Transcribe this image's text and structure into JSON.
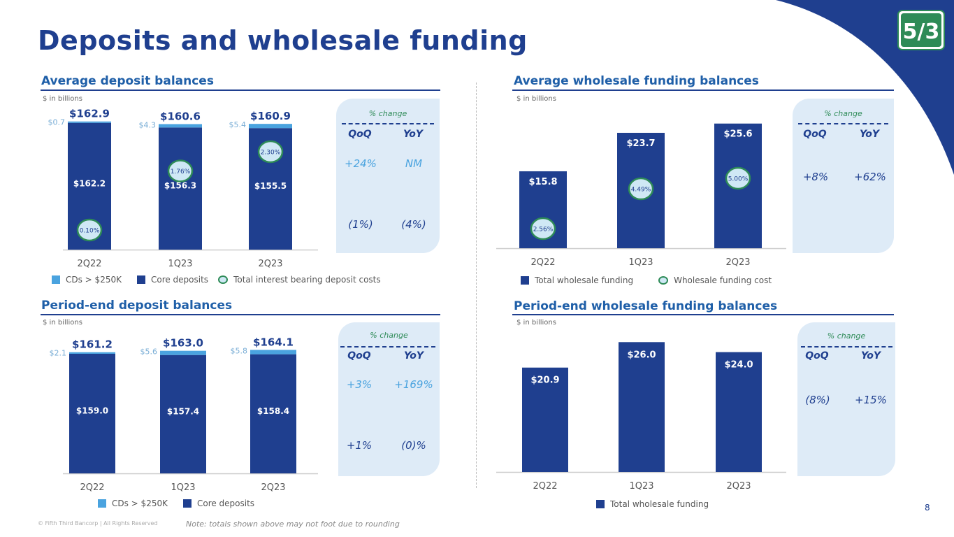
{
  "title": "Deposits and wholesale funding",
  "footer": {
    "copyright": "© Fifth Third Bancorp | All Rights Reserved",
    "note": "Note: totals shown above may not foot due to rounding",
    "page": "8"
  },
  "colors": {
    "core": "#1f3f8f",
    "cds": "#4aa3df",
    "oval_border": "#2e8b57",
    "oval_fill": "#cfe8f5",
    "panel": "#deebf7"
  },
  "chart_data": [
    {
      "id": "avg-deposits",
      "type": "bar",
      "title": "Average deposit balances",
      "unit": "$ in billions",
      "categories": [
        "2Q22",
        "1Q23",
        "2Q23"
      ],
      "series": [
        {
          "name": "Core deposits",
          "values": [
            162.2,
            156.3,
            155.5
          ],
          "labels": [
            "$162.2",
            "$156.3",
            "$155.5"
          ]
        },
        {
          "name": "CDs > $250K",
          "values": [
            0.7,
            4.3,
            5.4
          ],
          "labels": [
            "$0.7",
            "$4.3",
            "$5.4"
          ]
        }
      ],
      "totals": [
        "$162.9",
        "$160.6",
        "$160.9"
      ],
      "rate_series": {
        "name": "Total interest bearing deposit costs",
        "values": [
          0.1,
          1.76,
          2.3
        ],
        "labels": [
          "0.10%",
          "1.76%",
          "2.30%"
        ]
      },
      "ylim": [
        0,
        170
      ],
      "pct_change": {
        "header": "% change",
        "qoq_label": "QoQ",
        "yoy_label": "YoY",
        "rows": [
          {
            "qoq": "+24%",
            "yoy": "NM"
          },
          {
            "qoq": "(1%)",
            "yoy": "(4%)"
          }
        ]
      }
    },
    {
      "id": "avg-wholesale",
      "type": "bar",
      "title": "Average wholesale funding balances",
      "unit": "$ in billions",
      "categories": [
        "2Q22",
        "1Q23",
        "2Q23"
      ],
      "series": [
        {
          "name": "Total wholesale funding",
          "values": [
            15.8,
            23.7,
            25.6
          ],
          "labels": [
            "$15.8",
            "$23.7",
            "$25.6"
          ]
        }
      ],
      "rate_series": {
        "name": "Wholesale funding cost",
        "values": [
          2.56,
          4.49,
          5.0
        ],
        "labels": [
          "2.56%",
          "4.49%",
          "5.00%"
        ]
      },
      "ylim": [
        0,
        28
      ],
      "pct_change": {
        "header": "% change",
        "qoq_label": "QoQ",
        "yoy_label": "YoY",
        "rows": [
          {
            "qoq": "+8%",
            "yoy": "+62%"
          }
        ]
      }
    },
    {
      "id": "pe-deposits",
      "type": "bar",
      "title": "Period-end deposit balances",
      "unit": "$ in billions",
      "categories": [
        "2Q22",
        "1Q23",
        "2Q23"
      ],
      "series": [
        {
          "name": "Core deposits",
          "values": [
            159.0,
            157.4,
            158.4
          ],
          "labels": [
            "$159.0",
            "$157.4",
            "$158.4"
          ]
        },
        {
          "name": "CDs > $250K",
          "values": [
            2.1,
            5.6,
            5.8
          ],
          "labels": [
            "$2.1",
            "$5.6",
            "$5.8"
          ]
        }
      ],
      "totals": [
        "$161.2",
        "$163.0",
        "$164.1"
      ],
      "ylim": [
        0,
        172
      ],
      "pct_change": {
        "header": "% change",
        "qoq_label": "QoQ",
        "yoy_label": "YoY",
        "rows": [
          {
            "qoq": "+3%",
            "yoy": "+169%"
          },
          {
            "qoq": "+1%",
            "yoy": "(0)%"
          }
        ]
      }
    },
    {
      "id": "pe-wholesale",
      "type": "bar",
      "title": "Period-end wholesale funding balances",
      "unit": "$ in billions",
      "categories": [
        "2Q22",
        "1Q23",
        "2Q23"
      ],
      "series": [
        {
          "name": "Total wholesale funding",
          "values": [
            20.9,
            26.0,
            24.0
          ],
          "labels": [
            "$20.9",
            "$26.0",
            "$24.0"
          ]
        }
      ],
      "ylim": [
        0,
        28
      ],
      "pct_change": {
        "header": "% change",
        "qoq_label": "QoQ",
        "yoy_label": "YoY",
        "rows": [
          {
            "qoq": "(8%)",
            "yoy": "+15%"
          }
        ]
      }
    }
  ]
}
